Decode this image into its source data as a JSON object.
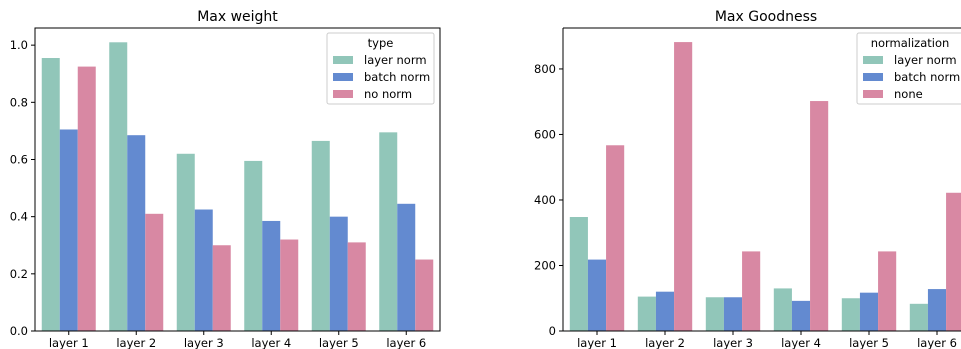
{
  "chart_data": [
    {
      "type": "bar",
      "title": "Max weight",
      "xlabel": "",
      "ylabel": "",
      "ylim": [
        0,
        1.06
      ],
      "yticks": [
        0.0,
        0.2,
        0.4,
        0.6,
        0.8,
        1.0
      ],
      "ytick_labels": [
        "0.0",
        "0.2",
        "0.4",
        "0.6",
        "0.8",
        "1.0"
      ],
      "categories": [
        "layer 1",
        "layer 2",
        "layer 3",
        "layer 4",
        "layer 5",
        "layer 6"
      ],
      "legend": {
        "title": "type",
        "placement": "top-right"
      },
      "series": [
        {
          "name": "layer norm",
          "color": "#91c6b9",
          "values": [
            0.955,
            1.01,
            0.62,
            0.595,
            0.665,
            0.695
          ]
        },
        {
          "name": "batch norm",
          "color": "#638ad0",
          "values": [
            0.705,
            0.685,
            0.425,
            0.385,
            0.4,
            0.445
          ]
        },
        {
          "name": "no norm",
          "color": "#d888a3",
          "values": [
            0.925,
            0.41,
            0.3,
            0.32,
            0.31,
            0.25
          ]
        }
      ]
    },
    {
      "type": "bar",
      "title": "Max Goodness",
      "xlabel": "",
      "ylabel": "",
      "ylim": [
        0,
        925
      ],
      "yticks": [
        0,
        200,
        400,
        600,
        800
      ],
      "ytick_labels": [
        "0",
        "200",
        "400",
        "600",
        "800"
      ],
      "categories": [
        "layer 1",
        "layer 2",
        "layer 3",
        "layer 4",
        "layer 5",
        "layer 6"
      ],
      "legend": {
        "title": "normalization",
        "placement": "top-right"
      },
      "series": [
        {
          "name": "layer norm",
          "color": "#91c6b9",
          "values": [
            348,
            105,
            103,
            130,
            100,
            83
          ]
        },
        {
          "name": "batch norm",
          "color": "#638ad0",
          "values": [
            218,
            120,
            103,
            92,
            117,
            128
          ]
        },
        {
          "name": "none",
          "color": "#d888a3",
          "values": [
            567,
            882,
            243,
            702,
            243,
            422
          ]
        }
      ]
    }
  ]
}
